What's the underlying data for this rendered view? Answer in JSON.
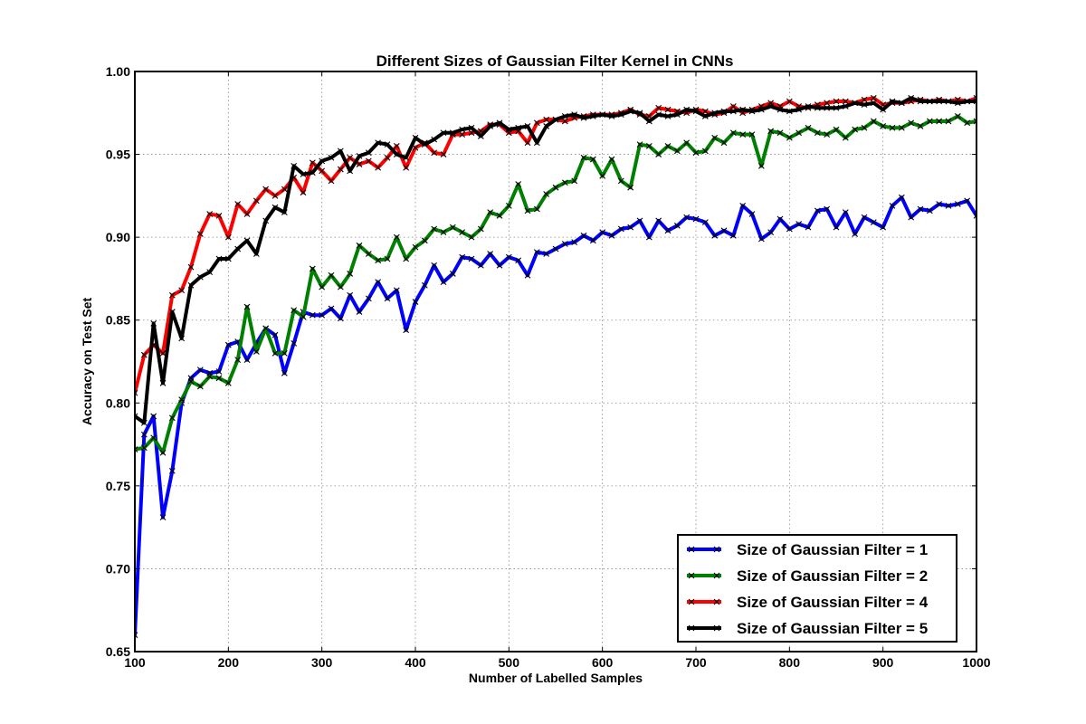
{
  "chart_data": {
    "type": "line",
    "title": "Different Sizes of Gaussian Filter Kernel in CNNs",
    "xlabel": "Number of Labelled Samples",
    "ylabel": "Accuracy on Test Set",
    "xlim": [
      100,
      1000
    ],
    "ylim": [
      0.65,
      1.0
    ],
    "xticks": [
      100,
      200,
      300,
      400,
      500,
      600,
      700,
      800,
      900,
      1000
    ],
    "xtick_labels": [
      "100",
      "200",
      "300",
      "400",
      "500",
      "600",
      "700",
      "800",
      "900",
      "1000"
    ],
    "yticks": [
      0.65,
      0.7,
      0.75,
      0.8,
      0.85,
      0.9,
      0.95,
      1.0
    ],
    "ytick_labels": [
      "0.65",
      "0.70",
      "0.75",
      "0.80",
      "0.85",
      "0.90",
      "0.95",
      "1.00"
    ],
    "grid": true,
    "legend_position": "lower-right",
    "marker": "x",
    "x": [
      100,
      110,
      120,
      130,
      140,
      150,
      160,
      170,
      180,
      190,
      200,
      210,
      220,
      230,
      240,
      250,
      260,
      270,
      280,
      290,
      300,
      310,
      320,
      330,
      340,
      350,
      360,
      370,
      380,
      390,
      400,
      410,
      420,
      430,
      440,
      450,
      460,
      470,
      480,
      490,
      500,
      510,
      520,
      530,
      540,
      550,
      560,
      570,
      580,
      590,
      600,
      610,
      620,
      630,
      640,
      650,
      660,
      670,
      680,
      690,
      700,
      710,
      720,
      730,
      740,
      750,
      760,
      770,
      780,
      790,
      800,
      810,
      820,
      830,
      840,
      850,
      860,
      870,
      880,
      890,
      900,
      910,
      920,
      930,
      940,
      950,
      960,
      970,
      980,
      990,
      1000
    ],
    "series": [
      {
        "name": "Size of Gaussian Filter = 1",
        "color": "#0000ff",
        "values": [
          0.66,
          0.781,
          0.792,
          0.731,
          0.759,
          0.8,
          0.815,
          0.82,
          0.818,
          0.819,
          0.835,
          0.837,
          0.826,
          0.836,
          0.845,
          0.841,
          0.818,
          0.836,
          0.855,
          0.853,
          0.853,
          0.857,
          0.851,
          0.865,
          0.855,
          0.863,
          0.873,
          0.863,
          0.868,
          0.844,
          0.861,
          0.871,
          0.883,
          0.873,
          0.878,
          0.888,
          0.887,
          0.883,
          0.89,
          0.883,
          0.888,
          0.886,
          0.877,
          0.891,
          0.89,
          0.893,
          0.896,
          0.897,
          0.901,
          0.898,
          0.903,
          0.901,
          0.905,
          0.906,
          0.91,
          0.9,
          0.91,
          0.904,
          0.907,
          0.912,
          0.911,
          0.909,
          0.901,
          0.904,
          0.901,
          0.919,
          0.914,
          0.899,
          0.903,
          0.911,
          0.905,
          0.908,
          0.906,
          0.916,
          0.917,
          0.906,
          0.915,
          0.902,
          0.912,
          0.909,
          0.906,
          0.919,
          0.924,
          0.912,
          0.917,
          0.916,
          0.92,
          0.919,
          0.92,
          0.922,
          0.913
        ]
      },
      {
        "name": "Size of Gaussian Filter = 2",
        "color": "#008000",
        "values": [
          0.772,
          0.773,
          0.779,
          0.77,
          0.791,
          0.802,
          0.813,
          0.81,
          0.816,
          0.815,
          0.812,
          0.826,
          0.858,
          0.831,
          0.845,
          0.83,
          0.83,
          0.856,
          0.852,
          0.881,
          0.87,
          0.877,
          0.87,
          0.878,
          0.895,
          0.89,
          0.886,
          0.887,
          0.9,
          0.887,
          0.894,
          0.898,
          0.905,
          0.903,
          0.906,
          0.903,
          0.9,
          0.905,
          0.915,
          0.913,
          0.919,
          0.932,
          0.916,
          0.917,
          0.926,
          0.93,
          0.933,
          0.934,
          0.948,
          0.947,
          0.937,
          0.947,
          0.934,
          0.93,
          0.956,
          0.955,
          0.95,
          0.955,
          0.952,
          0.957,
          0.951,
          0.952,
          0.96,
          0.957,
          0.963,
          0.962,
          0.962,
          0.943,
          0.964,
          0.963,
          0.96,
          0.963,
          0.966,
          0.963,
          0.962,
          0.965,
          0.96,
          0.965,
          0.966,
          0.97,
          0.967,
          0.966,
          0.966,
          0.969,
          0.967,
          0.97,
          0.97,
          0.97,
          0.973,
          0.969,
          0.97
        ]
      },
      {
        "name": "Size of Gaussian Filter = 4",
        "color": "#ff0000",
        "values": [
          0.806,
          0.829,
          0.835,
          0.83,
          0.865,
          0.868,
          0.882,
          0.902,
          0.914,
          0.913,
          0.9,
          0.92,
          0.914,
          0.922,
          0.929,
          0.925,
          0.929,
          0.936,
          0.927,
          0.945,
          0.94,
          0.934,
          0.941,
          0.948,
          0.944,
          0.946,
          0.942,
          0.948,
          0.955,
          0.942,
          0.954,
          0.957,
          0.951,
          0.95,
          0.962,
          0.962,
          0.963,
          0.964,
          0.968,
          0.968,
          0.963,
          0.964,
          0.957,
          0.969,
          0.971,
          0.971,
          0.97,
          0.972,
          0.973,
          0.974,
          0.974,
          0.974,
          0.975,
          0.977,
          0.974,
          0.973,
          0.978,
          0.977,
          0.976,
          0.975,
          0.977,
          0.976,
          0.974,
          0.975,
          0.979,
          0.975,
          0.977,
          0.979,
          0.981,
          0.979,
          0.982,
          0.979,
          0.978,
          0.98,
          0.981,
          0.982,
          0.982,
          0.981,
          0.983,
          0.984,
          0.98,
          0.981,
          0.981,
          0.982,
          0.983,
          0.982,
          0.983,
          0.982,
          0.983,
          0.982,
          0.984
        ]
      },
      {
        "name": "Size of Gaussian Filter = 5",
        "color": "#000000",
        "values": [
          0.792,
          0.788,
          0.848,
          0.812,
          0.855,
          0.839,
          0.871,
          0.876,
          0.879,
          0.887,
          0.887,
          0.893,
          0.898,
          0.89,
          0.91,
          0.918,
          0.915,
          0.943,
          0.938,
          0.939,
          0.946,
          0.948,
          0.952,
          0.94,
          0.949,
          0.951,
          0.957,
          0.956,
          0.95,
          0.948,
          0.96,
          0.956,
          0.959,
          0.963,
          0.963,
          0.965,
          0.966,
          0.961,
          0.967,
          0.969,
          0.965,
          0.966,
          0.967,
          0.957,
          0.967,
          0.971,
          0.973,
          0.974,
          0.972,
          0.973,
          0.974,
          0.973,
          0.974,
          0.976,
          0.975,
          0.97,
          0.974,
          0.973,
          0.974,
          0.977,
          0.976,
          0.973,
          0.975,
          0.976,
          0.976,
          0.977,
          0.976,
          0.977,
          0.979,
          0.977,
          0.976,
          0.977,
          0.979,
          0.978,
          0.978,
          0.978,
          0.979,
          0.981,
          0.98,
          0.981,
          0.977,
          0.982,
          0.981,
          0.984,
          0.982,
          0.982,
          0.982,
          0.982,
          0.981,
          0.982,
          0.982
        ]
      }
    ]
  }
}
